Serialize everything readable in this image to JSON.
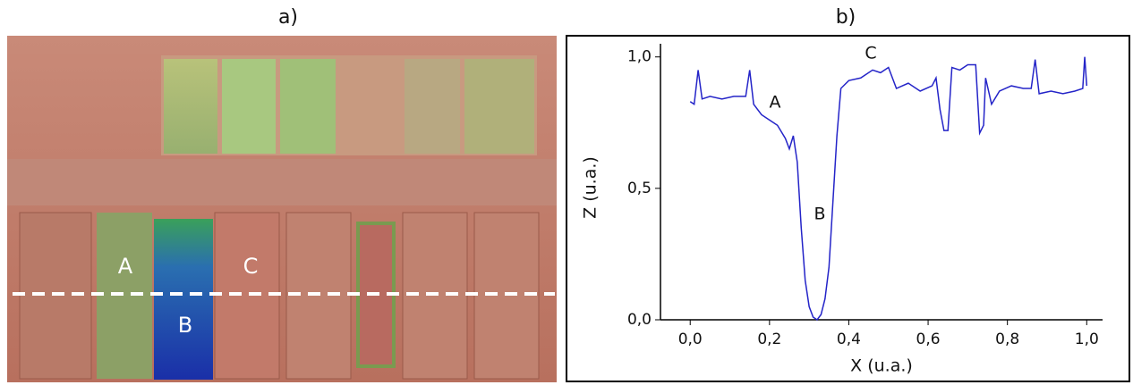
{
  "figure_labels": [
    "a)",
    "b)"
  ],
  "image_labels": [
    "A",
    "B",
    "C"
  ],
  "chart_data": {
    "type": "line",
    "x_label": "X (u.a.)",
    "y_label": "Z (u.a.)",
    "annotations": [
      "A",
      "B",
      "C"
    ],
    "xlim": [
      -0.075,
      1.04
    ],
    "ylim": [
      0,
      1.05
    ],
    "xticks": [
      {
        "value": 0,
        "label": "0,0"
      },
      {
        "value": 0.2,
        "label": "0,2"
      },
      {
        "value": 0.4,
        "label": "0,4"
      },
      {
        "value": 0.6,
        "label": "0,6"
      },
      {
        "value": 0.8,
        "label": "0,8"
      },
      {
        "value": 1,
        "label": "1,0"
      }
    ],
    "yticks": [
      {
        "value": 0,
        "label": "0,0"
      },
      {
        "value": 0.5,
        "label": "0,5"
      },
      {
        "value": 1,
        "label": "1,0"
      }
    ],
    "color": "#2424c8",
    "x": [
      0,
      0.01,
      0.02,
      0.03,
      0.05,
      0.08,
      0.11,
      0.14,
      0.15,
      0.16,
      0.18,
      0.2,
      0.22,
      0.24,
      0.25,
      0.26,
      0.27,
      0.28,
      0.29,
      0.3,
      0.31,
      0.32,
      0.33,
      0.34,
      0.35,
      0.36,
      0.37,
      0.38,
      0.4,
      0.43,
      0.46,
      0.48,
      0.5,
      0.52,
      0.55,
      0.58,
      0.61,
      0.62,
      0.63,
      0.64,
      0.65,
      0.66,
      0.68,
      0.7,
      0.72,
      0.73,
      0.74,
      0.745,
      0.76,
      0.78,
      0.81,
      0.84,
      0.86,
      0.87,
      0.88,
      0.91,
      0.94,
      0.97,
      0.99,
      0.995,
      1
    ],
    "values": [
      0.83,
      0.82,
      0.95,
      0.84,
      0.85,
      0.84,
      0.85,
      0.85,
      0.95,
      0.82,
      0.78,
      0.76,
      0.74,
      0.69,
      0.65,
      0.7,
      0.6,
      0.35,
      0.15,
      0.05,
      0.01,
      0,
      0.02,
      0.08,
      0.2,
      0.45,
      0.7,
      0.88,
      0.91,
      0.92,
      0.95,
      0.94,
      0.96,
      0.88,
      0.9,
      0.87,
      0.89,
      0.92,
      0.8,
      0.72,
      0.72,
      0.96,
      0.95,
      0.97,
      0.97,
      0.71,
      0.74,
      0.92,
      0.82,
      0.87,
      0.89,
      0.88,
      0.88,
      0.99,
      0.86,
      0.87,
      0.86,
      0.87,
      0.88,
      1,
      0.89
    ]
  }
}
